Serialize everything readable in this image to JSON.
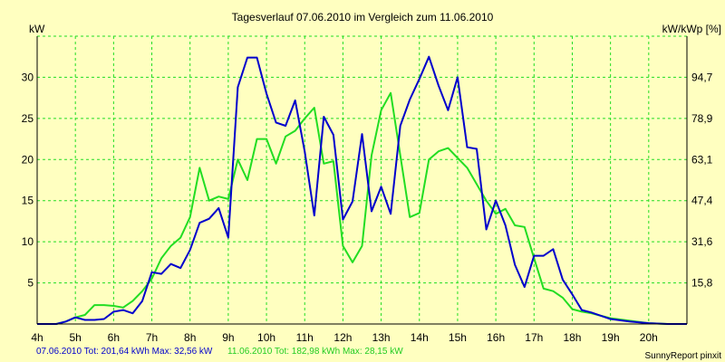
{
  "chart_data": {
    "type": "line",
    "title": "Tagesverlauf 07.06.2010 im Vergleich zum 11.06.2010",
    "ylabel_left": "kW",
    "ylabel_right": "kW/kWp [%]",
    "x_ticks": [
      "4h",
      "5h",
      "6h",
      "7h",
      "8h",
      "9h",
      "10h",
      "11h",
      "12h",
      "13h",
      "14h",
      "15h",
      "16h",
      "17h",
      "18h",
      "19h",
      "20h"
    ],
    "x_range": [
      4,
      21
    ],
    "y_ticks_left": [
      "5",
      "10",
      "15",
      "20",
      "25",
      "30"
    ],
    "y_ticks_right": [
      "15,8",
      "31,6",
      "47,4",
      "63,1",
      "78,9",
      "94,7"
    ],
    "y_range": [
      0,
      35
    ],
    "grid": true,
    "series": [
      {
        "name": "07.06.2010",
        "color": "#0000CC",
        "x": [
          4.0,
          4.5,
          4.75,
          5.0,
          5.25,
          5.5,
          5.75,
          6.0,
          6.25,
          6.5,
          6.75,
          7.0,
          7.25,
          7.5,
          7.75,
          8.0,
          8.25,
          8.5,
          8.75,
          9.0,
          9.25,
          9.5,
          9.75,
          10.0,
          10.25,
          10.5,
          10.75,
          11.0,
          11.25,
          11.5,
          11.75,
          12.0,
          12.25,
          12.5,
          12.75,
          13.0,
          13.25,
          13.5,
          13.75,
          14.0,
          14.25,
          14.5,
          14.75,
          15.0,
          15.25,
          15.5,
          15.75,
          16.0,
          16.25,
          16.5,
          16.75,
          17.0,
          17.25,
          17.5,
          17.75,
          18.0,
          18.25,
          18.5,
          18.75,
          19.0,
          19.5,
          20.0,
          20.5,
          21.0
        ],
        "y": [
          0,
          0,
          0.3,
          0.8,
          0.5,
          0.5,
          0.6,
          1.5,
          1.7,
          1.3,
          2.8,
          6.3,
          6.1,
          7.3,
          6.8,
          9.0,
          12.3,
          12.8,
          14.1,
          10.5,
          28.8,
          32.4,
          32.4,
          28.0,
          24.5,
          24.1,
          27.2,
          21.0,
          13.2,
          25.2,
          23.0,
          12.7,
          14.9,
          23.1,
          13.7,
          16.7,
          13.4,
          24.1,
          27.3,
          29.8,
          32.5,
          29.0,
          26.0,
          30.0,
          21.5,
          21.3,
          11.5,
          15.0,
          12.0,
          7.2,
          4.5,
          8.3,
          8.3,
          9.1,
          5.4,
          3.6,
          1.7,
          1.4,
          1.0,
          0.6,
          0.3,
          0.1,
          0,
          0
        ]
      },
      {
        "name": "11.06.2010",
        "color": "#22DD22",
        "x": [
          4.0,
          4.5,
          4.75,
          5.0,
          5.25,
          5.5,
          5.75,
          6.0,
          6.25,
          6.5,
          6.75,
          7.0,
          7.25,
          7.5,
          7.75,
          8.0,
          8.25,
          8.5,
          8.75,
          9.0,
          9.25,
          9.5,
          9.75,
          10.0,
          10.25,
          10.5,
          10.75,
          11.0,
          11.25,
          11.5,
          11.75,
          12.0,
          12.25,
          12.5,
          12.75,
          13.0,
          13.25,
          13.5,
          13.75,
          14.0,
          14.25,
          14.5,
          14.75,
          15.0,
          15.25,
          15.5,
          15.75,
          16.0,
          16.25,
          16.5,
          16.75,
          17.0,
          17.25,
          17.5,
          17.75,
          18.0,
          18.25,
          18.5,
          18.75,
          19.0,
          19.5,
          20.0,
          20.5,
          21.0
        ],
        "y": [
          0,
          0,
          0.3,
          0.8,
          1.1,
          2.3,
          2.3,
          2.2,
          2.0,
          2.8,
          4.0,
          5.5,
          8.0,
          9.5,
          10.5,
          13.0,
          19.0,
          15.0,
          15.5,
          15.2,
          20.0,
          17.5,
          22.5,
          22.5,
          19.5,
          22.8,
          23.5,
          25.0,
          26.3,
          19.5,
          19.8,
          9.5,
          7.5,
          9.5,
          20.5,
          26.0,
          28.1,
          20.5,
          13.0,
          13.5,
          20.0,
          21.0,
          21.4,
          20.2,
          19.0,
          17.0,
          15.0,
          13.4,
          14.0,
          12.0,
          11.8,
          8.0,
          4.3,
          4.0,
          3.2,
          1.8,
          1.5,
          1.3,
          1.0,
          0.7,
          0.4,
          0.1,
          0,
          0
        ]
      }
    ]
  },
  "footer": {
    "series1_label": "07.06.2010 Tot: 201,64 kWh Max: 32,56 kW",
    "series2_label": "11.06.2010 Tot: 182,98 kWh Max: 28,15 kW",
    "credit": "SunnyReport pinxit"
  },
  "colors": {
    "background": "#FFFFC0",
    "plot_bg": "#FFFFC0",
    "grid": "#22DD22",
    "series1": "#0000CC",
    "series2": "#22DD22"
  }
}
